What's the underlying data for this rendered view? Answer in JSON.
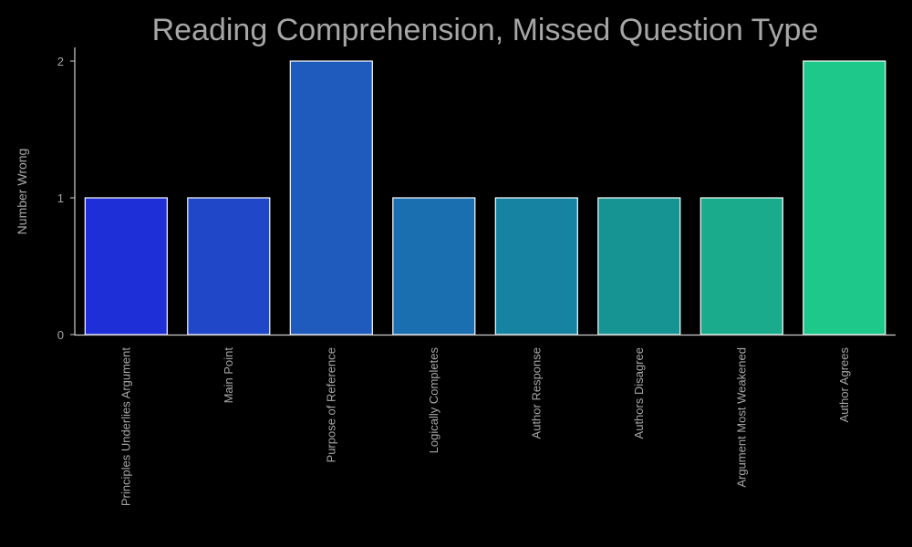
{
  "chart_data": {
    "type": "bar",
    "title": "Reading Comprehension, Missed Question Type",
    "xlabel": "",
    "ylabel": "Number Wrong",
    "categories": [
      "Principles Underlies Argument",
      "Main Point",
      "Purpose of Reference",
      "Logically Completes",
      "Author Response",
      "Authors Disagree",
      "Argument Most Weakened",
      "Author Agrees"
    ],
    "values": [
      1,
      1,
      2,
      1,
      1,
      1,
      1,
      2
    ],
    "ylim": [
      0,
      2.1
    ],
    "yticks": [
      0,
      1,
      2
    ],
    "colors": [
      "#1f2fd8",
      "#1f47c8",
      "#1e5bbd",
      "#1a6fb0",
      "#1783a3",
      "#169494",
      "#19ab8c",
      "#1ec78a"
    ],
    "grid": false,
    "legend": "none",
    "background": "#000000",
    "text_color": "#a6a6a6"
  }
}
